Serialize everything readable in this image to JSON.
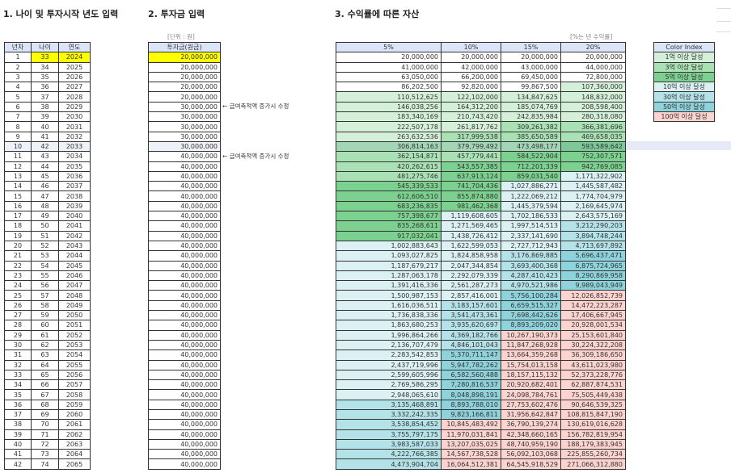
{
  "titles": {
    "section1": "1. 나이 및 투자시작 년도 입력",
    "section2": "2. 투자금 입력",
    "section3": "3. 수익률에 따른 자산"
  },
  "unit_label": "[단위 : 원]",
  "rate_note": "[%는 년 수익률]",
  "left_table": {
    "headers": [
      "년차",
      "나이",
      "연도"
    ],
    "start_age": "33",
    "start_year": "2024"
  },
  "invest_table": {
    "header": "투자금(원금)"
  },
  "notes": [
    "← 급여축적액 증가시 수정",
    "← 급여축적액 증가시 수정"
  ],
  "returns_table": {
    "headers": [
      "5%",
      "10%",
      "15%",
      "20%"
    ]
  },
  "rows": [
    {
      "n": "1",
      "age": "33",
      "year": "2024",
      "invest": "20,000,000",
      "v": [
        "20,000,000",
        "20,000,000",
        "20,000,000",
        "20,000,000"
      ]
    },
    {
      "n": "2",
      "age": "34",
      "year": "2025",
      "invest": "20,000,000",
      "v": [
        "41,000,000",
        "42,000,000",
        "43,000,000",
        "44,000,000"
      ]
    },
    {
      "n": "3",
      "age": "35",
      "year": "2026",
      "invest": "20,000,000",
      "v": [
        "63,050,000",
        "66,200,000",
        "69,450,000",
        "72,800,000"
      ]
    },
    {
      "n": "4",
      "age": "36",
      "year": "2027",
      "invest": "20,000,000",
      "v": [
        "86,202,500",
        "92,820,000",
        "99,867,500",
        "107,360,000"
      ]
    },
    {
      "n": "5",
      "age": "37",
      "year": "2028",
      "invest": "20,000,000",
      "v": [
        "110,512,625",
        "122,102,000",
        "134,847,625",
        "148,832,000"
      ]
    },
    {
      "n": "6",
      "age": "38",
      "year": "2029",
      "invest": "30,000,000",
      "v": [
        "146,038,256",
        "164,312,200",
        "185,074,769",
        "208,598,400"
      ]
    },
    {
      "n": "7",
      "age": "39",
      "year": "2030",
      "invest": "30,000,000",
      "v": [
        "183,340,169",
        "210,743,420",
        "242,835,984",
        "280,318,080"
      ]
    },
    {
      "n": "8",
      "age": "40",
      "year": "2031",
      "invest": "30,000,000",
      "v": [
        "222,507,178",
        "261,817,762",
        "309,261,382",
        "366,381,696"
      ]
    },
    {
      "n": "9",
      "age": "41",
      "year": "2032",
      "invest": "30,000,000",
      "v": [
        "263,632,536",
        "317,999,538",
        "385,650,589",
        "469,658,035"
      ]
    },
    {
      "n": "10",
      "age": "42",
      "year": "2033",
      "invest": "30,000,000",
      "v": [
        "306,814,163",
        "379,799,492",
        "473,498,177",
        "593,589,642"
      ]
    },
    {
      "n": "11",
      "age": "43",
      "year": "2034",
      "invest": "40,000,000",
      "v": [
        "362,154,871",
        "457,779,441",
        "584,522,904",
        "752,307,571"
      ]
    },
    {
      "n": "12",
      "age": "44",
      "year": "2035",
      "invest": "40,000,000",
      "v": [
        "420,262,615",
        "543,557,385",
        "712,201,339",
        "942,769,085"
      ]
    },
    {
      "n": "13",
      "age": "45",
      "year": "2036",
      "invest": "40,000,000",
      "v": [
        "481,275,746",
        "637,913,124",
        "859,031,540",
        "1,171,322,902"
      ]
    },
    {
      "n": "14",
      "age": "46",
      "year": "2037",
      "invest": "40,000,000",
      "v": [
        "545,339,533",
        "741,704,436",
        "1,027,886,271",
        "1,445,587,482"
      ]
    },
    {
      "n": "15",
      "age": "47",
      "year": "2038",
      "invest": "40,000,000",
      "v": [
        "612,606,510",
        "855,874,880",
        "1,222,069,212",
        "1,774,704,979"
      ]
    },
    {
      "n": "16",
      "age": "48",
      "year": "2039",
      "invest": "40,000,000",
      "v": [
        "683,236,835",
        "981,462,368",
        "1,445,379,594",
        "2,169,645,974"
      ]
    },
    {
      "n": "17",
      "age": "49",
      "year": "2040",
      "invest": "40,000,000",
      "v": [
        "757,398,677",
        "1,119,608,605",
        "1,702,186,533",
        "2,643,575,169"
      ]
    },
    {
      "n": "18",
      "age": "50",
      "year": "2041",
      "invest": "40,000,000",
      "v": [
        "835,268,611",
        "1,271,569,465",
        "1,997,514,513",
        "3,212,290,203"
      ]
    },
    {
      "n": "19",
      "age": "51",
      "year": "2042",
      "invest": "40,000,000",
      "v": [
        "917,032,041",
        "1,438,726,412",
        "2,337,141,690",
        "3,894,748,244"
      ]
    },
    {
      "n": "20",
      "age": "52",
      "year": "2043",
      "invest": "40,000,000",
      "v": [
        "1,002,883,643",
        "1,622,599,053",
        "2,727,712,943",
        "4,713,697,892"
      ]
    },
    {
      "n": "21",
      "age": "53",
      "year": "2044",
      "invest": "40,000,000",
      "v": [
        "1,093,027,825",
        "1,824,858,958",
        "3,176,869,885",
        "5,696,437,471"
      ]
    },
    {
      "n": "22",
      "age": "54",
      "year": "2045",
      "invest": "40,000,000",
      "v": [
        "1,187,679,217",
        "2,047,344,854",
        "3,693,400,368",
        "6,875,724,965"
      ]
    },
    {
      "n": "23",
      "age": "55",
      "year": "2046",
      "invest": "40,000,000",
      "v": [
        "1,287,063,178",
        "2,292,079,339",
        "4,287,410,423",
        "8,290,869,958"
      ]
    },
    {
      "n": "24",
      "age": "56",
      "year": "2047",
      "invest": "40,000,000",
      "v": [
        "1,391,416,336",
        "2,561,287,273",
        "4,970,521,986",
        "9,989,043,949"
      ]
    },
    {
      "n": "25",
      "age": "57",
      "year": "2048",
      "invest": "40,000,000",
      "v": [
        "1,500,987,153",
        "2,857,416,001",
        "5,756,100,284",
        "12,026,852,739"
      ]
    },
    {
      "n": "26",
      "age": "58",
      "year": "2049",
      "invest": "40,000,000",
      "v": [
        "1,616,036,511",
        "3,183,157,601",
        "6,659,515,327",
        "14,472,223,287"
      ]
    },
    {
      "n": "27",
      "age": "59",
      "year": "2050",
      "invest": "40,000,000",
      "v": [
        "1,736,838,336",
        "3,541,473,361",
        "7,698,442,626",
        "17,406,667,945"
      ]
    },
    {
      "n": "28",
      "age": "60",
      "year": "2051",
      "invest": "40,000,000",
      "v": [
        "1,863,680,253",
        "3,935,620,697",
        "8,893,209,020",
        "20,928,001,534"
      ]
    },
    {
      "n": "29",
      "age": "61",
      "year": "2052",
      "invest": "40,000,000",
      "v": [
        "1,996,864,266",
        "4,369,182,766",
        "10,267,190,373",
        "25,153,601,840"
      ]
    },
    {
      "n": "30",
      "age": "62",
      "year": "2053",
      "invest": "40,000,000",
      "v": [
        "2,136,707,479",
        "4,846,101,043",
        "11,847,268,928",
        "30,224,322,208"
      ]
    },
    {
      "n": "31",
      "age": "63",
      "year": "2054",
      "invest": "40,000,000",
      "v": [
        "2,283,542,853",
        "5,370,711,147",
        "13,664,359,268",
        "36,309,186,650"
      ]
    },
    {
      "n": "32",
      "age": "64",
      "year": "2055",
      "invest": "40,000,000",
      "v": [
        "2,437,719,996",
        "5,947,782,262",
        "15,754,013,158",
        "43,611,023,980"
      ]
    },
    {
      "n": "33",
      "age": "65",
      "year": "2056",
      "invest": "40,000,000",
      "v": [
        "2,599,605,996",
        "6,582,560,488",
        "18,157,115,132",
        "52,373,228,776"
      ]
    },
    {
      "n": "34",
      "age": "66",
      "year": "2057",
      "invest": "40,000,000",
      "v": [
        "2,769,586,295",
        "7,280,816,537",
        "20,920,682,401",
        "62,887,874,531"
      ]
    },
    {
      "n": "35",
      "age": "67",
      "year": "2058",
      "invest": "40,000,000",
      "v": [
        "2,948,065,610",
        "8,048,898,191",
        "24,098,784,761",
        "75,505,449,438"
      ]
    },
    {
      "n": "36",
      "age": "68",
      "year": "2059",
      "invest": "40,000,000",
      "v": [
        "3,135,468,891",
        "8,893,788,010",
        "27,753,602,476",
        "90,646,539,325"
      ]
    },
    {
      "n": "37",
      "age": "69",
      "year": "2060",
      "invest": "40,000,000",
      "v": [
        "3,332,242,335",
        "9,823,166,811",
        "31,956,642,847",
        "108,815,847,190"
      ]
    },
    {
      "n": "38",
      "age": "70",
      "year": "2061",
      "invest": "40,000,000",
      "v": [
        "3,538,854,452",
        "10,845,483,492",
        "36,790,139,274",
        "130,619,016,628"
      ]
    },
    {
      "n": "39",
      "age": "71",
      "year": "2062",
      "invest": "40,000,000",
      "v": [
        "3,755,797,175",
        "11,970,031,841",
        "42,348,660,165",
        "156,782,819,954"
      ]
    },
    {
      "n": "40",
      "age": "72",
      "year": "2063",
      "invest": "40,000,000",
      "v": [
        "3,983,587,033",
        "13,207,035,025",
        "48,740,959,190",
        "188,179,383,945"
      ]
    },
    {
      "n": "41",
      "age": "73",
      "year": "2064",
      "invest": "40,000,000",
      "v": [
        "4,222,766,385",
        "14,567,738,528",
        "56,092,103,068",
        "225,855,260,734"
      ]
    },
    {
      "n": "42",
      "age": "74",
      "year": "2065",
      "invest": "40,000,000",
      "v": [
        "4,473,904,704",
        "16,064,512,381",
        "64,545,918,529",
        "271,066,312,880"
      ]
    }
  ],
  "color_index": {
    "header": "Color Index",
    "items": [
      {
        "label": "1억 이상 달성",
        "min": 100000000,
        "color": "#d5f0d9"
      },
      {
        "label": "3억 이상 달성",
        "min": 300000000,
        "color": "#a9e1b5"
      },
      {
        "label": "5억 이상 달성",
        "min": 500000000,
        "color": "#7dd190"
      },
      {
        "label": "10억 이상 달성",
        "min": 1000000000,
        "color": "#dcf1f4"
      },
      {
        "label": "30억 이상 달성",
        "min": 3000000000,
        "color": "#b3e2e8"
      },
      {
        "label": "50억 이상 달성",
        "min": 5000000000,
        "color": "#8ed3dc"
      },
      {
        "label": "100억 이상 달성",
        "min": 10000000000,
        "color": "#fcd3ce"
      }
    ]
  },
  "selected_row": "10"
}
